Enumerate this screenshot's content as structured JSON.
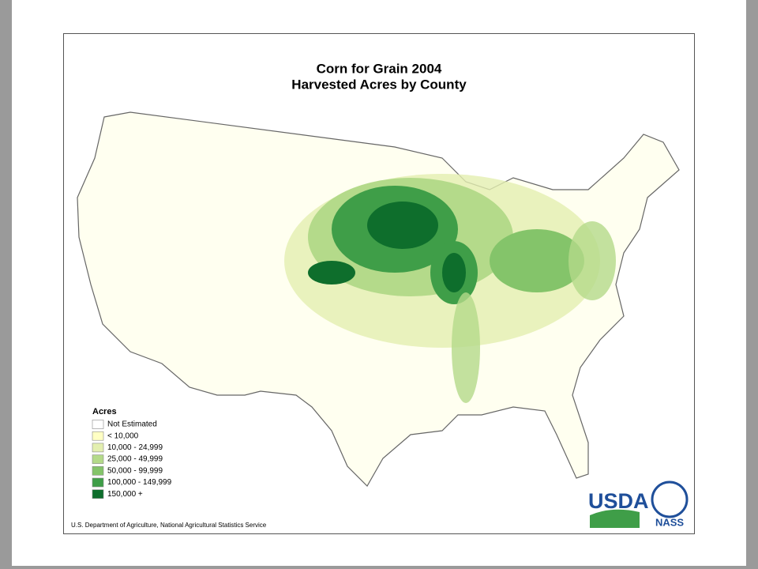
{
  "title": [
    "Corn for Grain 2004",
    "Harvested Acres by County"
  ],
  "legend": {
    "title": "Acres",
    "items": [
      {
        "label": "Not Estimated",
        "color": "#ffffff"
      },
      {
        "label": "< 10,000",
        "color": "#ffffc4"
      },
      {
        "label": "10,000 - 24,999",
        "color": "#e3efb0"
      },
      {
        "label": "25,000 - 49,999",
        "color": "#b4da8a"
      },
      {
        "label": "50,000 - 99,999",
        "color": "#84c46a"
      },
      {
        "label": "100,000 - 149,999",
        "color": "#3f9e48"
      },
      {
        "label": "150,000 +",
        "color": "#0e6e2c"
      }
    ]
  },
  "footer": "U.S. Department of Agriculture, National Agricultural Statistics Service",
  "logos": [
    "USDA",
    "NASS"
  ]
}
